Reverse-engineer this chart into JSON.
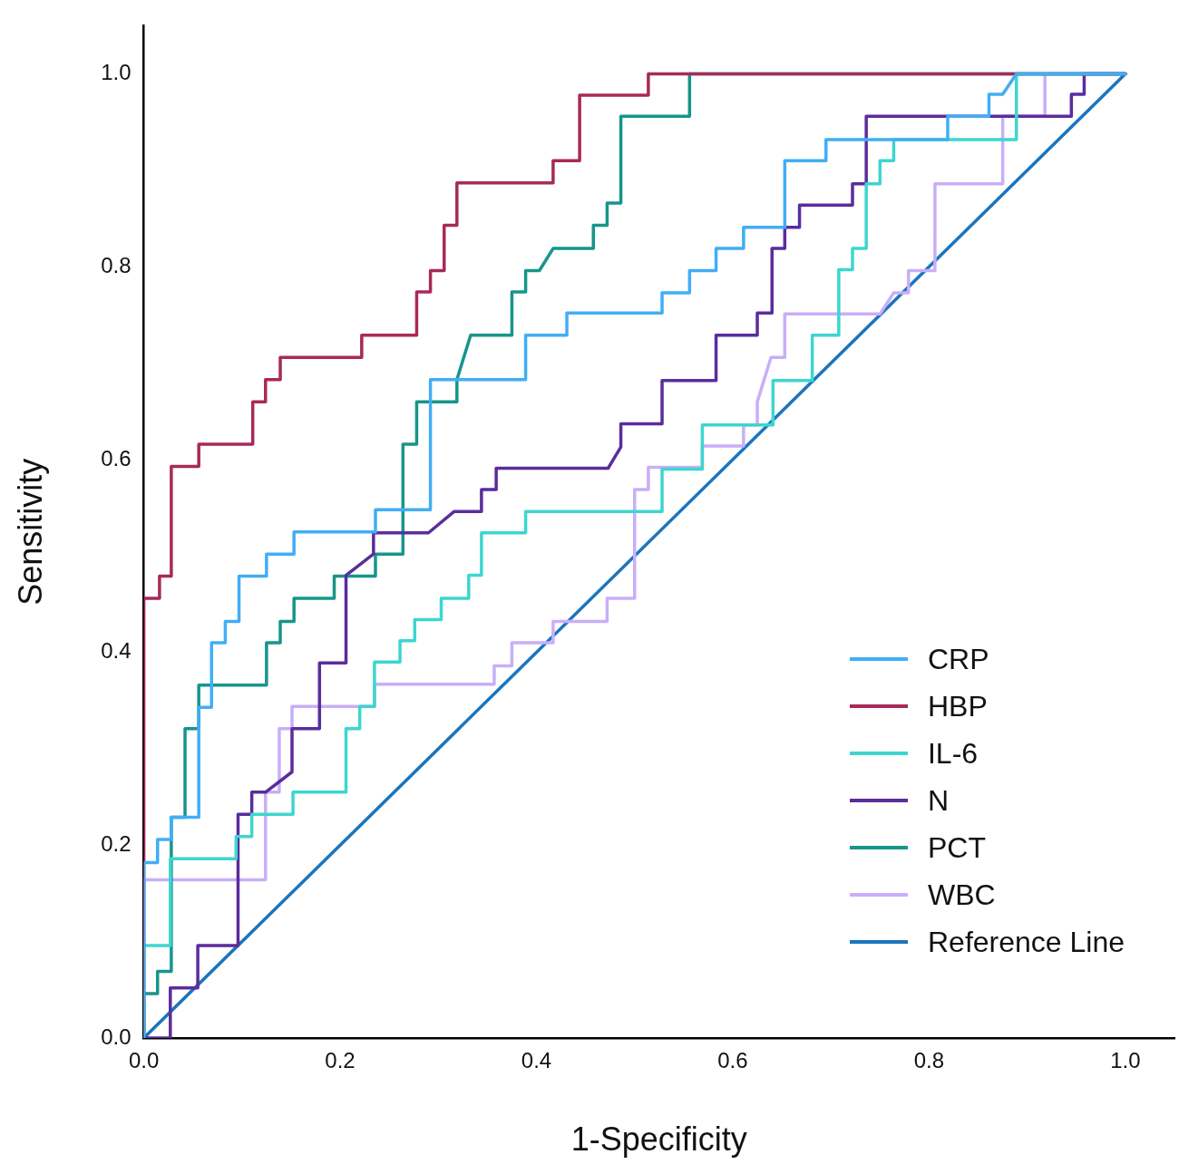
{
  "chart_data": {
    "type": "line",
    "xlabel": "1-Specificity",
    "ylabel": "Sensitivity",
    "xlim": [
      0,
      1.05
    ],
    "ylim": [
      0,
      1.05
    ],
    "xticks": [
      {
        "value": 0,
        "label": "0.0"
      },
      {
        "value": 0.2,
        "label": "0.2"
      },
      {
        "value": 0.4,
        "label": "0.4"
      },
      {
        "value": 0.6,
        "label": "0.6"
      },
      {
        "value": 0.8,
        "label": "0.8"
      },
      {
        "value": 1,
        "label": "1.0"
      }
    ],
    "yticks": [
      {
        "value": 0,
        "label": "0.0"
      },
      {
        "value": 0.2,
        "label": "0.2"
      },
      {
        "value": 0.4,
        "label": "0.4"
      },
      {
        "value": 0.6,
        "label": "0.6"
      },
      {
        "value": 0.8,
        "label": "0.8"
      },
      {
        "value": 1,
        "label": "1.0"
      }
    ],
    "legend": "bottom right",
    "series": [
      {
        "name": "CRP",
        "color": "#41aef5",
        "x": [
          0,
          0,
          0.014,
          0.014,
          0.028,
          0.028,
          0.056,
          0.056,
          0.069,
          0.069,
          0.083,
          0.083,
          0.097,
          0.097,
          0.125,
          0.125,
          0.153,
          0.153,
          0.236,
          0.236,
          0.292,
          0.292,
          0.389,
          0.389,
          0.431,
          0.431,
          0.528,
          0.528,
          0.556,
          0.556,
          0.583,
          0.583,
          0.611,
          0.611,
          0.653,
          0.653,
          0.695,
          0.695,
          0.819,
          0.819,
          0.861,
          0.861,
          0.875,
          0.889,
          1
        ],
        "values": [
          0,
          0.182,
          0.182,
          0.206,
          0.206,
          0.229,
          0.229,
          0.343,
          0.343,
          0.41,
          0.41,
          0.432,
          0.432,
          0.479,
          0.479,
          0.502,
          0.502,
          0.525,
          0.525,
          0.548,
          0.548,
          0.683,
          0.683,
          0.729,
          0.729,
          0.752,
          0.752,
          0.773,
          0.773,
          0.796,
          0.796,
          0.819,
          0.819,
          0.841,
          0.841,
          0.91,
          0.91,
          0.932,
          0.932,
          0.956,
          0.956,
          0.979,
          0.979,
          1,
          1
        ]
      },
      {
        "name": "HBP",
        "color": "#a8295a",
        "x": [
          0,
          0,
          0.016,
          0.016,
          0.028,
          0.028,
          0.056,
          0.056,
          0.111,
          0.111,
          0.124,
          0.124,
          0.139,
          0.139,
          0.222,
          0.222,
          0.278,
          0.278,
          0.292,
          0.292,
          0.306,
          0.306,
          0.319,
          0.319,
          0.417,
          0.417,
          0.444,
          0.444,
          0.514,
          0.514,
          1
        ],
        "values": [
          0,
          0.456,
          0.456,
          0.479,
          0.479,
          0.593,
          0.593,
          0.616,
          0.616,
          0.66,
          0.66,
          0.683,
          0.683,
          0.706,
          0.706,
          0.729,
          0.729,
          0.774,
          0.774,
          0.796,
          0.796,
          0.843,
          0.843,
          0.887,
          0.887,
          0.91,
          0.91,
          0.978,
          0.978,
          1,
          1
        ]
      },
      {
        "name": "IL-6",
        "color": "#3dd6cf",
        "x": [
          0,
          0,
          0.027,
          0.027,
          0.094,
          0.094,
          0.11,
          0.11,
          0.152,
          0.152,
          0.206,
          0.206,
          0.22,
          0.22,
          0.235,
          0.235,
          0.261,
          0.261,
          0.276,
          0.276,
          0.303,
          0.303,
          0.331,
          0.331,
          0.344,
          0.344,
          0.389,
          0.389,
          0.528,
          0.528,
          0.569,
          0.569,
          0.641,
          0.641,
          0.681,
          0.681,
          0.708,
          0.708,
          0.722,
          0.722,
          0.736,
          0.736,
          0.75,
          0.75,
          0.764,
          0.764,
          0.889,
          0.889,
          1
        ],
        "values": [
          0,
          0.096,
          0.096,
          0.186,
          0.186,
          0.209,
          0.209,
          0.232,
          0.232,
          0.255,
          0.255,
          0.321,
          0.321,
          0.344,
          0.344,
          0.39,
          0.39,
          0.412,
          0.412,
          0.434,
          0.434,
          0.456,
          0.456,
          0.48,
          0.48,
          0.524,
          0.524,
          0.546,
          0.546,
          0.59,
          0.59,
          0.636,
          0.636,
          0.682,
          0.682,
          0.729,
          0.729,
          0.797,
          0.797,
          0.819,
          0.819,
          0.886,
          0.886,
          0.91,
          0.91,
          0.932,
          0.932,
          1,
          1
        ]
      },
      {
        "name": "N",
        "color": "#5a2d9c",
        "x": [
          0,
          0.027,
          0.027,
          0.055,
          0.055,
          0.096,
          0.096,
          0.11,
          0.11,
          0.124,
          0.151,
          0.151,
          0.179,
          0.179,
          0.206,
          0.206,
          0.234,
          0.234,
          0.29,
          0.316,
          0.344,
          0.344,
          0.359,
          0.359,
          0.473,
          0.486,
          0.486,
          0.528,
          0.528,
          0.583,
          0.583,
          0.625,
          0.625,
          0.64,
          0.64,
          0.653,
          0.653,
          0.668,
          0.668,
          0.722,
          0.722,
          0.736,
          0.736,
          0.945,
          0.945,
          0.958,
          0.958,
          1
        ],
        "values": [
          0,
          0,
          0.052,
          0.052,
          0.096,
          0.096,
          0.232,
          0.232,
          0.255,
          0.255,
          0.276,
          0.321,
          0.321,
          0.389,
          0.389,
          0.48,
          0.502,
          0.524,
          0.524,
          0.546,
          0.546,
          0.569,
          0.569,
          0.591,
          0.591,
          0.613,
          0.637,
          0.637,
          0.682,
          0.682,
          0.729,
          0.729,
          0.752,
          0.752,
          0.819,
          0.819,
          0.841,
          0.841,
          0.864,
          0.864,
          0.886,
          0.886,
          0.956,
          0.956,
          0.979,
          0.979,
          1,
          1
        ]
      },
      {
        "name": "PCT",
        "color": "#17958a",
        "x": [
          0,
          0,
          0.014,
          0.014,
          0.028,
          0.028,
          0.042,
          0.042,
          0.056,
          0.056,
          0.125,
          0.125,
          0.139,
          0.139,
          0.153,
          0.153,
          0.194,
          0.194,
          0.236,
          0.236,
          0.264,
          0.264,
          0.278,
          0.278,
          0.319,
          0.319,
          0.333,
          0.375,
          0.375,
          0.389,
          0.389,
          0.403,
          0.417,
          0.458,
          0.458,
          0.472,
          0.472,
          0.486,
          0.486,
          0.556,
          0.556,
          1
        ],
        "values": [
          0,
          0.046,
          0.046,
          0.069,
          0.069,
          0.229,
          0.229,
          0.321,
          0.321,
          0.366,
          0.366,
          0.41,
          0.41,
          0.432,
          0.432,
          0.456,
          0.456,
          0.479,
          0.479,
          0.502,
          0.502,
          0.616,
          0.616,
          0.66,
          0.66,
          0.683,
          0.729,
          0.729,
          0.774,
          0.774,
          0.796,
          0.796,
          0.819,
          0.819,
          0.843,
          0.843,
          0.866,
          0.866,
          0.956,
          0.956,
          1,
          1
        ]
      },
      {
        "name": "WBC",
        "color": "#c9aef9",
        "x": [
          0,
          0,
          0.124,
          0.124,
          0.138,
          0.138,
          0.151,
          0.151,
          0.235,
          0.235,
          0.357,
          0.357,
          0.375,
          0.375,
          0.417,
          0.417,
          0.472,
          0.472,
          0.5,
          0.5,
          0.514,
          0.514,
          0.569,
          0.569,
          0.611,
          0.611,
          0.625,
          0.625,
          0.639,
          0.653,
          0.653,
          0.75,
          0.764,
          0.779,
          0.779,
          0.806,
          0.806,
          0.875,
          0.875,
          0.918,
          0.918,
          1
        ],
        "values": [
          0,
          0.164,
          0.164,
          0.255,
          0.255,
          0.321,
          0.321,
          0.344,
          0.344,
          0.367,
          0.367,
          0.386,
          0.386,
          0.41,
          0.41,
          0.432,
          0.432,
          0.456,
          0.456,
          0.569,
          0.569,
          0.592,
          0.592,
          0.614,
          0.614,
          0.636,
          0.636,
          0.66,
          0.706,
          0.706,
          0.751,
          0.751,
          0.773,
          0.773,
          0.796,
          0.796,
          0.886,
          0.886,
          0.956,
          0.956,
          1,
          1
        ]
      },
      {
        "name": "Reference Line",
        "color": "#1a75bd",
        "x": [
          0,
          1
        ],
        "values": [
          0,
          1
        ]
      }
    ]
  }
}
